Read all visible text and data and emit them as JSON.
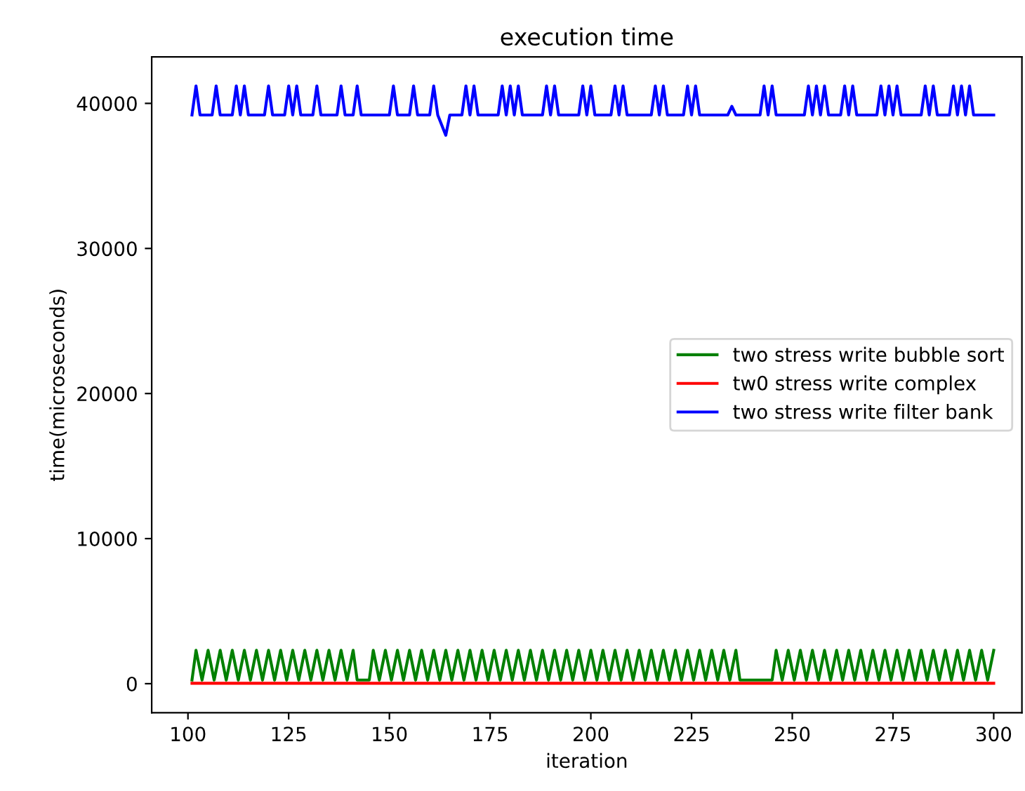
{
  "chart_data": {
    "type": "line",
    "title": "execution time",
    "xlabel": "iteration",
    "ylabel": "time(microseconds)",
    "xlim": [
      91,
      307
    ],
    "ylim": [
      -2000,
      43200
    ],
    "xticks": [
      100,
      125,
      150,
      175,
      200,
      225,
      250,
      275,
      300
    ],
    "yticks": [
      0,
      10000,
      20000,
      30000,
      40000
    ],
    "grid": false,
    "legend": "right",
    "marker": "none",
    "line_style": "solid",
    "series": [
      {
        "name": "two stress write bubble sort",
        "color": "#008000",
        "x": [
          101,
          102,
          103.5,
          105,
          106.5,
          108,
          109.5,
          111,
          112.5,
          114,
          115.5,
          117,
          118.5,
          120,
          121.5,
          123,
          124.5,
          126,
          127.5,
          129,
          130.5,
          132,
          133.5,
          135,
          136.5,
          138,
          139.5,
          141,
          142,
          145,
          146,
          147.5,
          149,
          150.5,
          152,
          153.5,
          155,
          156.5,
          158,
          159.5,
          161,
          162.5,
          164,
          165.5,
          167,
          168.5,
          170,
          171.5,
          173,
          174.5,
          176,
          177.5,
          179,
          180.5,
          182,
          183.5,
          185,
          186.5,
          188,
          189.5,
          191,
          192.5,
          194,
          195.5,
          197,
          198.5,
          200,
          201.5,
          203,
          204.5,
          206,
          207.5,
          209,
          210.5,
          212,
          213.5,
          215,
          216.5,
          218,
          219.5,
          221,
          222.5,
          224,
          225.5,
          227,
          228.5,
          230,
          231.5,
          233,
          234.5,
          236,
          237,
          245,
          246,
          247.5,
          249,
          250.5,
          252,
          253.5,
          255,
          256.5,
          258,
          259.5,
          261,
          262.5,
          264,
          265.5,
          267,
          268.5,
          270,
          271.5,
          273,
          274.5,
          276,
          277.5,
          279,
          280.5,
          282,
          283.5,
          285,
          286.5,
          288,
          289.5,
          291,
          292.5,
          294,
          295.5,
          297,
          298.5,
          300
        ],
        "values": [
          250,
          2300,
          250,
          2300,
          250,
          2300,
          250,
          2300,
          250,
          2300,
          250,
          2300,
          250,
          2300,
          250,
          2300,
          250,
          2300,
          250,
          2300,
          250,
          2300,
          250,
          2300,
          250,
          2300,
          250,
          2300,
          250,
          250,
          2300,
          250,
          2300,
          250,
          2300,
          250,
          2300,
          250,
          2300,
          250,
          2300,
          250,
          2300,
          250,
          2300,
          250,
          2300,
          250,
          2300,
          250,
          2300,
          250,
          2300,
          250,
          2300,
          250,
          2300,
          250,
          2300,
          250,
          2300,
          250,
          2300,
          250,
          2300,
          250,
          2300,
          250,
          2300,
          250,
          2300,
          250,
          2300,
          250,
          2300,
          250,
          2300,
          250,
          2300,
          250,
          2300,
          250,
          2300,
          250,
          2300,
          250,
          2300,
          250,
          2300,
          250,
          2300,
          250,
          250,
          2300,
          250,
          2300,
          250,
          2300,
          250,
          2300,
          250,
          2300,
          250,
          2300,
          250,
          2300,
          250,
          2300,
          250,
          2300,
          250,
          2300,
          250,
          2300,
          250,
          2300,
          250,
          2300,
          250,
          2300,
          250,
          2300,
          250,
          2300,
          250,
          2300,
          250,
          2300,
          250,
          2300
        ]
      },
      {
        "name": "tw0 stress write complex",
        "color": "#ff0000",
        "x": [
          101,
          300
        ],
        "values": [
          30,
          30
        ]
      },
      {
        "name": "two stress write filter bank",
        "color": "#0000ff",
        "x": [
          101,
          102,
          103,
          106,
          107,
          108,
          111,
          112,
          113,
          114,
          115,
          119,
          120,
          121,
          124,
          125,
          126,
          127,
          128,
          131,
          132,
          133,
          137,
          138,
          139,
          141,
          142,
          143,
          150,
          151,
          152,
          155,
          156,
          157,
          160,
          161,
          162,
          164,
          165,
          168,
          169,
          170,
          171,
          172,
          177,
          178,
          179,
          180,
          181,
          182,
          183,
          188,
          189,
          190,
          191,
          192,
          197,
          198,
          199,
          200,
          201,
          205,
          206,
          207,
          208,
          209,
          215,
          216,
          217,
          218,
          219,
          223,
          224,
          225,
          226,
          227,
          234,
          235,
          236,
          242,
          243,
          244,
          245,
          246,
          253,
          254,
          255,
          256,
          257,
          258,
          259,
          262,
          263,
          264,
          265,
          266,
          271,
          272,
          273,
          274,
          275,
          276,
          277,
          282,
          283,
          284,
          285,
          286,
          289,
          290,
          291,
          292,
          293,
          294,
          295,
          300
        ],
        "values": [
          39200,
          41200,
          39200,
          39200,
          41200,
          39200,
          39200,
          41200,
          39200,
          41200,
          39200,
          39200,
          41200,
          39200,
          39200,
          41200,
          39200,
          41200,
          39200,
          39200,
          41200,
          39200,
          39200,
          41200,
          39200,
          39200,
          41200,
          39200,
          39200,
          41200,
          39200,
          39200,
          41200,
          39200,
          39200,
          41200,
          39200,
          37800,
          39200,
          39200,
          41200,
          39200,
          41200,
          39200,
          39200,
          41200,
          39200,
          41200,
          39200,
          41200,
          39200,
          39200,
          41200,
          39200,
          41200,
          39200,
          39200,
          41200,
          39200,
          41200,
          39200,
          39200,
          41200,
          39200,
          41200,
          39200,
          39200,
          41200,
          39200,
          41200,
          39200,
          39200,
          41200,
          39200,
          41200,
          39200,
          39200,
          39800,
          39200,
          39200,
          41200,
          39200,
          41200,
          39200,
          39200,
          41200,
          39200,
          41200,
          39200,
          41200,
          39200,
          39200,
          41200,
          39200,
          41200,
          39200,
          39200,
          41200,
          39200,
          41200,
          39200,
          41200,
          39200,
          39200,
          41200,
          39200,
          41200,
          39200,
          39200,
          41200,
          39200,
          41200,
          39200,
          41200,
          39200,
          39200
        ]
      }
    ]
  }
}
